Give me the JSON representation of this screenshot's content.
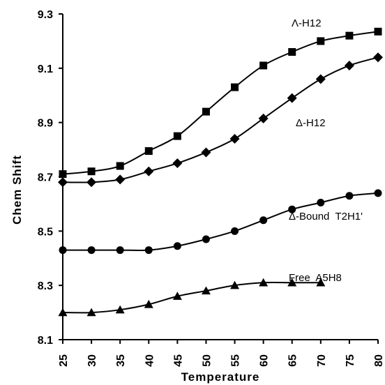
{
  "chart_data": {
    "type": "line",
    "xlabel": "Temperature",
    "ylabel": "Chem  Shift",
    "x": [
      25,
      30,
      35,
      40,
      45,
      50,
      55,
      60,
      65,
      70,
      75,
      80
    ],
    "xlim": [
      25,
      80
    ],
    "ylim": [
      8.1,
      9.3
    ],
    "yticks": [
      "8.1",
      "8.3",
      "8.5",
      "8.7",
      "8.9",
      "9.1",
      "9.3"
    ],
    "xticks": [
      "25",
      "30",
      "35",
      "40",
      "45",
      "50",
      "55",
      "60",
      "65",
      "70",
      "75",
      "80"
    ],
    "grid": false,
    "series": [
      {
        "name": "Λ-H12",
        "marker": "square",
        "x": [
          25,
          30,
          35,
          40,
          45,
          50,
          55,
          60,
          65,
          70,
          75,
          80
        ],
        "values": [
          8.71,
          8.72,
          8.74,
          8.795,
          8.85,
          8.94,
          9.03,
          9.11,
          9.16,
          9.2,
          9.22,
          9.235
        ]
      },
      {
        "name": "Δ-H12",
        "marker": "diamond",
        "x": [
          25,
          30,
          35,
          40,
          45,
          50,
          55,
          60,
          65,
          70,
          75,
          80
        ],
        "values": [
          8.68,
          8.68,
          8.69,
          8.72,
          8.75,
          8.79,
          8.84,
          8.915,
          8.99,
          9.06,
          9.11,
          9.14
        ]
      },
      {
        "name": "Δ-Bound  T2H1'",
        "marker": "circle",
        "x": [
          25,
          30,
          35,
          40,
          45,
          50,
          55,
          60,
          65,
          70,
          75,
          80
        ],
        "values": [
          8.43,
          8.43,
          8.43,
          8.43,
          8.445,
          8.47,
          8.5,
          8.54,
          8.58,
          8.605,
          8.63,
          8.64
        ]
      },
      {
        "name": "Free  A5H8",
        "marker": "triangle",
        "x": [
          25,
          30,
          35,
          40,
          45,
          50,
          55,
          60,
          65,
          70
        ],
        "values": [
          8.2,
          8.2,
          8.21,
          8.23,
          8.26,
          8.28,
          8.3,
          8.31,
          8.31,
          8.31
        ]
      }
    ]
  }
}
